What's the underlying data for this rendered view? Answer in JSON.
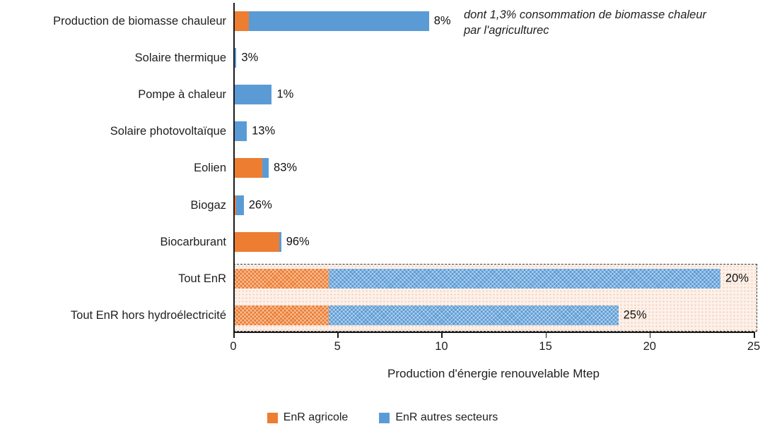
{
  "colors": {
    "agricole": "#ED7D31",
    "autres": "#5B9BD5",
    "highlight_bg": "#FCF1EB",
    "dash_border": "#3A3A3A",
    "axis": "#1A1A1A",
    "text": "#1F1F1F"
  },
  "chart_data": {
    "type": "bar",
    "orientation": "horizontal",
    "stacked": true,
    "title": "",
    "xlabel": "Production d'énergie renouvelable Mtep",
    "ylabel": "",
    "xlim": [
      0,
      25
    ],
    "xticks": [
      0,
      5,
      10,
      15,
      20,
      25
    ],
    "grid": false,
    "legend_position": "bottom",
    "series_names": [
      "EnR agricole",
      "EnR autres secteurs"
    ],
    "rows": [
      {
        "label": "Production de biomasse chauleur",
        "agricole": 0.75,
        "autres": 8.65,
        "pct": "8%",
        "pattern": false,
        "highlighted": false
      },
      {
        "label": "Solaire thermique",
        "agricole": 0.0,
        "autres": 0.15,
        "pct": "3%",
        "pattern": false,
        "highlighted": false
      },
      {
        "label": "Pompe à chaleur",
        "agricole": 0.0,
        "autres": 1.85,
        "pct": "1%",
        "pattern": false,
        "highlighted": false
      },
      {
        "label": "Solaire photovoltaïque",
        "agricole": 0.08,
        "autres": 0.57,
        "pct": "13%",
        "pattern": false,
        "highlighted": false
      },
      {
        "label": "Eolien",
        "agricole": 1.4,
        "autres": 0.3,
        "pct": "83%",
        "pattern": false,
        "highlighted": false
      },
      {
        "label": "Biogaz",
        "agricole": 0.13,
        "autres": 0.37,
        "pct": "26%",
        "pattern": false,
        "highlighted": false
      },
      {
        "label": "Biocarburant",
        "agricole": 2.2,
        "autres": 0.1,
        "pct": "96%",
        "pattern": false,
        "highlighted": false
      },
      {
        "label": "Tout EnR",
        "agricole": 4.6,
        "autres": 18.8,
        "pct": "20%",
        "pattern": true,
        "highlighted": true
      },
      {
        "label": "Tout EnR hors hydroélectricité",
        "agricole": 4.6,
        "autres": 13.9,
        "pct": "25%",
        "pattern": true,
        "highlighted": true
      }
    ],
    "annotation": "dont 1,3% consommation de biomasse chaleur par l'agriculturec",
    "legend": [
      {
        "label": "EnR agricole",
        "color": "#ED7D31"
      },
      {
        "label": "EnR autres secteurs",
        "color": "#5B9BD5"
      }
    ]
  }
}
